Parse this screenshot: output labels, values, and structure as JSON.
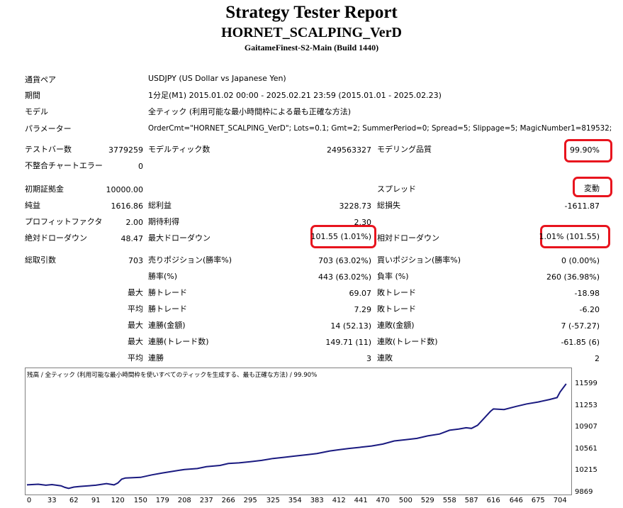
{
  "header": {
    "title": "Strategy Tester Report",
    "ea_name": "HORNET_SCALPING_VerD",
    "server": "GaitameFinest-S2-Main (Build 1440)"
  },
  "info": {
    "pair_label": "通貨ペア",
    "pair_value": "USDJPY (US Dollar vs Japanese Yen)",
    "period_label": "期間",
    "period_value": "1分足(M1) 2015.01.02 00:00 - 2025.02.21 23:59 (2015.01.01 - 2025.02.23)",
    "model_label": "モデル",
    "model_value": "全ティック (利用可能な最小時間枠による最も正確な方法)",
    "params_label": "パラメーター",
    "params_value": "OrderCmt=\"HORNET_SCALPING_VerD\"; Lots=0.1; Gmt=2; SummerPeriod=0; Spread=5; Slippage=5; MagicNumber1=819532;"
  },
  "stats": {
    "bars_label": "テストバー数",
    "bars_value": "3779259",
    "ticks_label": "モデルティック数",
    "ticks_value": "249563327",
    "quality_label": "モデリング品質",
    "quality_value": "99.90%",
    "mismatch_label": "不整合チャートエラー",
    "mismatch_value": "0",
    "deposit_label": "初期証拠金",
    "deposit_value": "10000.00",
    "spread_label": "スプレッド",
    "spread_value": "変動",
    "net_label": "純益",
    "net_value": "1616.86",
    "gross_profit_label": "総利益",
    "gross_profit_value": "3228.73",
    "gross_loss_label": "総損失",
    "gross_loss_value": "-1611.87",
    "pf_label": "プロフィットファクタ",
    "pf_value": "2.00",
    "expected_label": "期待利得",
    "expected_value": "2.30",
    "abs_dd_label": "絶対ドローダウン",
    "abs_dd_value": "48.47",
    "max_dd_label": "最大ドローダウン",
    "max_dd_value": "101.55 (1.01%)",
    "rel_dd_label": "相対ドローダウン",
    "rel_dd_value": "1.01% (101.55)",
    "total_trades_label": "総取引数",
    "total_trades_value": "703",
    "short_label": "売りポジション(勝率%)",
    "short_value": "703 (63.02%)",
    "long_label": "買いポジション(勝率%)",
    "long_value": "0 (0.00%)",
    "win_rate_label": "勝率(%)",
    "win_rate_value": "443 (63.02%)",
    "loss_rate_label": "負率 (%)",
    "loss_rate_value": "260 (36.98%)",
    "max_prefix": "最大",
    "avg_prefix": "平均",
    "win_trade_label": "勝トレード",
    "loss_trade_label": "敗トレード",
    "max_win_value": "69.07",
    "max_loss_value": "-18.98",
    "avg_win_value": "7.29",
    "avg_loss_value": "-6.20",
    "consec_win_amt_label": "連勝(金額)",
    "consec_win_amt_value": "14 (52.13)",
    "consec_loss_amt_label": "連敗(金額)",
    "consec_loss_amt_value": "7 (-57.27)",
    "consec_win_cnt_label": "連勝(トレード数)",
    "consec_win_cnt_value": "149.71 (11)",
    "consec_loss_cnt_label": "連敗(トレード数)",
    "consec_loss_cnt_value": "-61.85 (6)",
    "avg_win_streak_label": "連勝",
    "avg_win_streak_value": "3",
    "avg_loss_streak_label": "連敗",
    "avg_loss_streak_value": "2"
  },
  "colors": {
    "highlight": "#e8141e",
    "line": "#1a1a80"
  },
  "chart_data": {
    "type": "line",
    "title": "残高 / 全ティック (利用可能な最小時間枠を使いすべてのティックを生成する、最も正確な方法) / 99.90%",
    "xlabel": "",
    "ylabel": "",
    "xlim": [
      0,
      715
    ],
    "ylim": [
      9869,
      11700
    ],
    "x_ticks": [
      0,
      33,
      62,
      91,
      120,
      150,
      179,
      208,
      237,
      266,
      295,
      325,
      354,
      383,
      412,
      441,
      470,
      500,
      529,
      558,
      587,
      616,
      646,
      675,
      704
    ],
    "y_ticks": [
      9869,
      10215,
      10561,
      10907,
      11253,
      11599
    ],
    "series": [
      {
        "x": [
          0,
          15,
          25,
          33,
          45,
          50,
          55,
          62,
          70,
          91,
          105,
          115,
          120,
          125,
          130,
          150,
          165,
          179,
          195,
          208,
          225,
          237,
          255,
          266,
          280,
          295,
          310,
          325,
          340,
          354,
          370,
          383,
          400,
          412,
          425,
          441,
          455,
          470,
          485,
          500,
          515,
          529,
          545,
          558,
          570,
          580,
          587,
          595,
          605,
          612,
          616,
          630,
          646,
          660,
          675,
          690,
          700,
          704,
          712
        ],
        "y": [
          10000,
          10010,
          9995,
          10005,
          9985,
          9960,
          9945,
          9965,
          9975,
          9995,
          10020,
          10000,
          10030,
          10090,
          10110,
          10120,
          10160,
          10190,
          10220,
          10245,
          10260,
          10290,
          10310,
          10340,
          10350,
          10370,
          10390,
          10420,
          10440,
          10460,
          10480,
          10500,
          10540,
          10560,
          10580,
          10600,
          10620,
          10650,
          10700,
          10720,
          10740,
          10780,
          10810,
          10870,
          10890,
          10910,
          10900,
          10950,
          11080,
          11170,
          11210,
          11200,
          11250,
          11290,
          11320,
          11360,
          11390,
          11480,
          11610
        ]
      }
    ]
  }
}
